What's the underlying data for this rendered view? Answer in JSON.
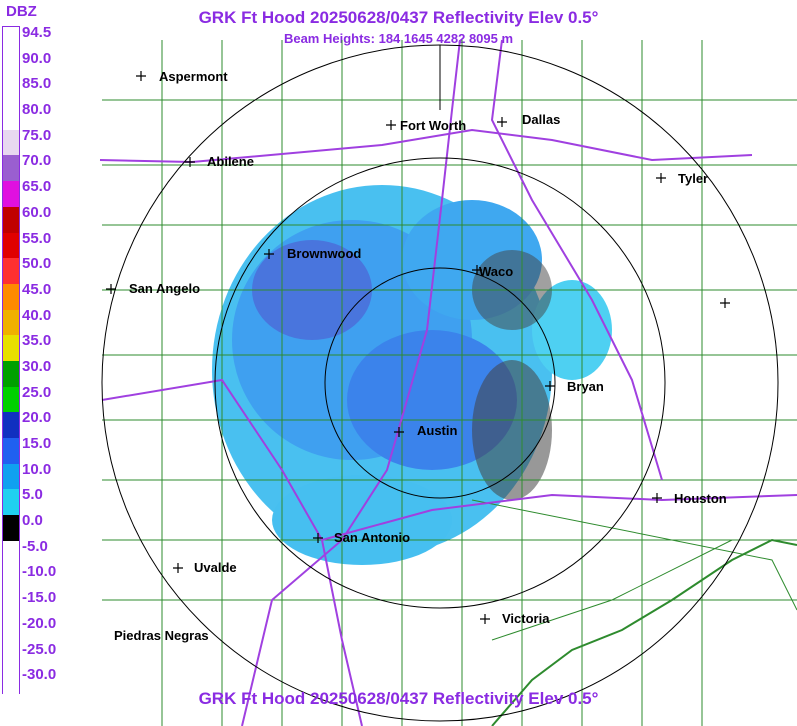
{
  "title": "GRK Ft Hood 20250628/0437 Reflectivity Elev 0.5°",
  "subtitle": "Beam Heights: 184 1645 4282 8095 m",
  "legend": {
    "unit": "DBZ",
    "labels": [
      "94.5",
      "90.0",
      "85.0",
      "80.0",
      "75.0",
      "70.0",
      "65.0",
      "60.0",
      "55.0",
      "50.0",
      "45.0",
      "40.0",
      "35.0",
      "30.0",
      "25.0",
      "20.0",
      "15.0",
      "10.0",
      "5.0",
      "0.0",
      "-5.0",
      "-10.0",
      "-15.0",
      "-20.0",
      "-25.0",
      "-30.0"
    ],
    "colors": [
      "#ffffff",
      "#ffffff",
      "#ffffff",
      "#ffffff",
      "#e8d8f0",
      "#9a5fd0",
      "#e010e0",
      "#c00000",
      "#e00000",
      "#ff3030",
      "#ff8a00",
      "#f0b000",
      "#e8e000",
      "#00a000",
      "#00d000",
      "#1030c0",
      "#2060f0",
      "#10a0f0",
      "#20d0f0",
      "#000000",
      "#ffffff",
      "#ffffff",
      "#ffffff",
      "#ffffff",
      "#ffffff",
      "#ffffff"
    ]
  },
  "cities": [
    {
      "name": "Aspermont"
    },
    {
      "name": "Fort Worth"
    },
    {
      "name": "Dallas"
    },
    {
      "name": "Abilene"
    },
    {
      "name": "Tyler"
    },
    {
      "name": "Brownwood"
    },
    {
      "name": "Waco"
    },
    {
      "name": "San Angelo"
    },
    {
      "name": "Bryan"
    },
    {
      "name": "Austin"
    },
    {
      "name": "Houston"
    },
    {
      "name": "San Antonio"
    },
    {
      "name": "Uvalde"
    },
    {
      "name": "Victoria"
    },
    {
      "name": "Piedras Negras"
    },
    {
      "name": ""
    }
  ],
  "colors": {
    "accent": "#8a2be2",
    "county_lines": "#2e8b2e",
    "highways": "#a040e0",
    "range_rings": "#000000",
    "reflectivity_light": "#20c0f0",
    "reflectivity_medium": "#1a6ee8"
  }
}
